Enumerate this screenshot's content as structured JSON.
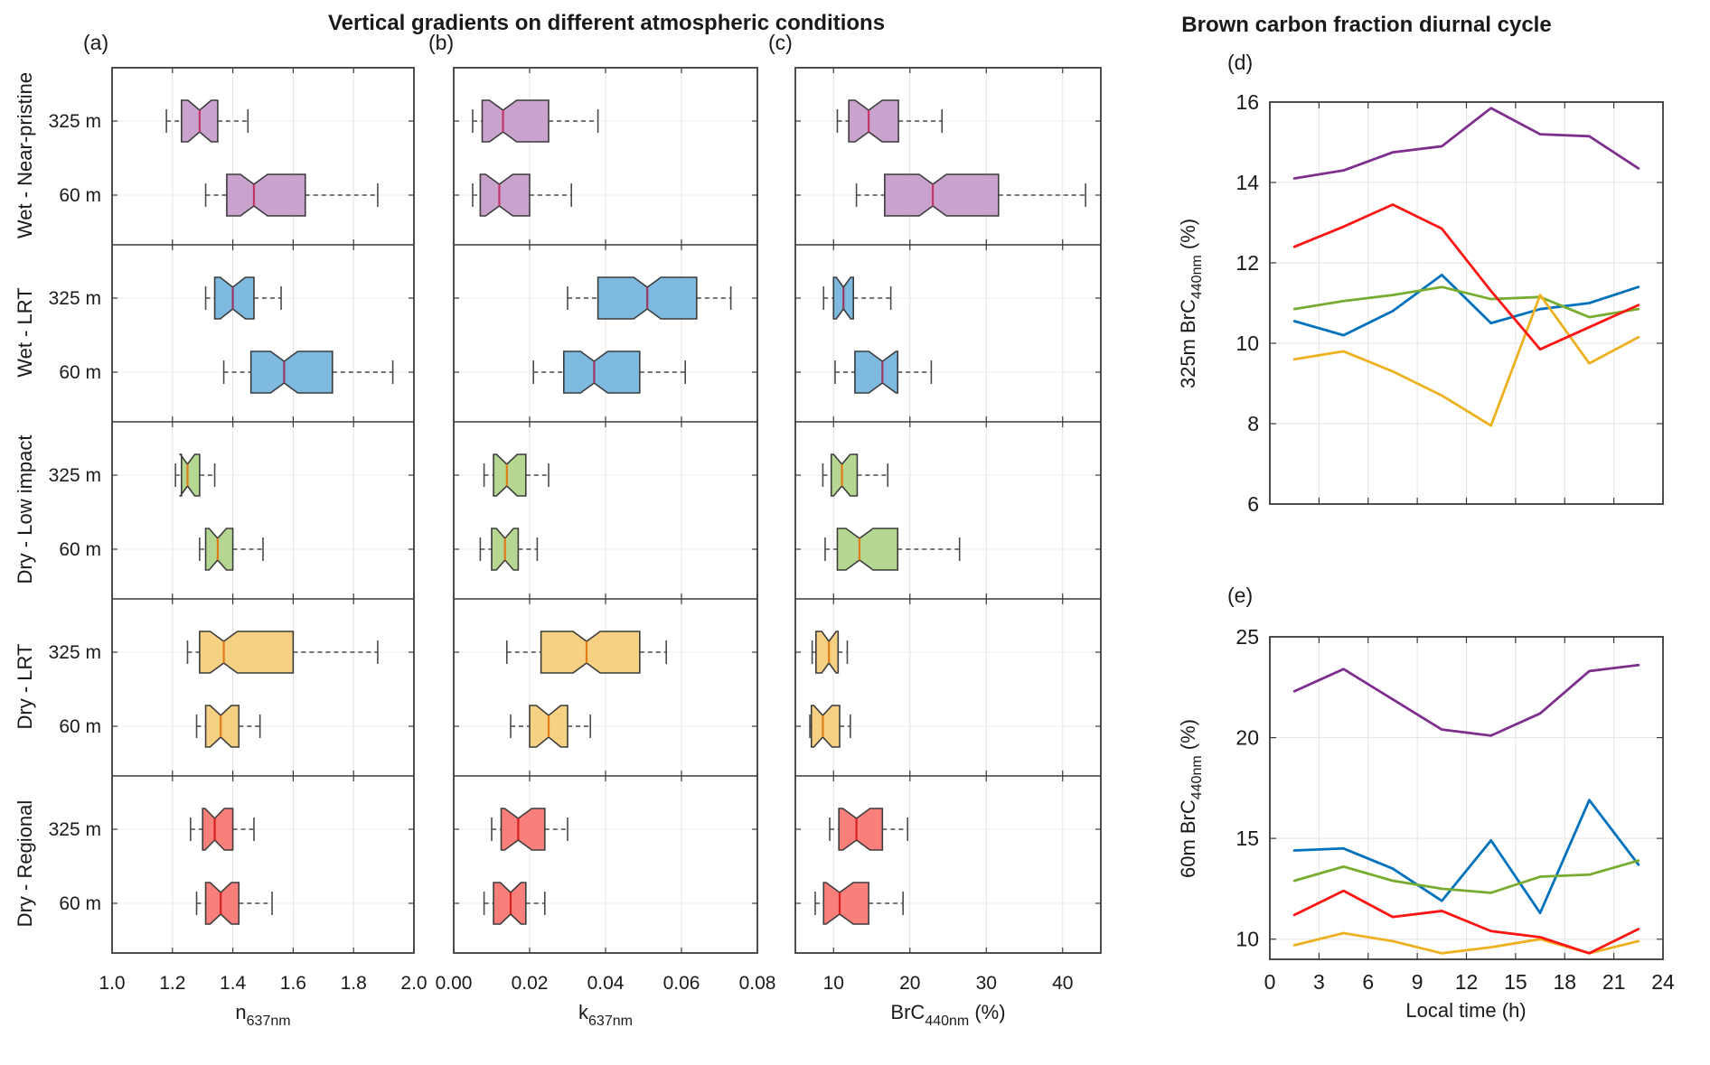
{
  "titles": {
    "left": "Vertical gradients on different atmospheric conditions",
    "right": "Brown carbon fraction diurnal cycle"
  },
  "row_labels": [
    "325 m",
    "60 m"
  ],
  "axis_color": "#3a3a3a",
  "grid_color": "#e4e4e4",
  "whisker_color": "#4a4a4a",
  "group_styles": [
    {
      "name": "Wet - Near-pristine",
      "fill": "#c9a3ce",
      "line": "#7E2F8E",
      "median": "#c2356b"
    },
    {
      "name": "Wet - LRT",
      "fill": "#7eb9e0",
      "line": "#0072BD",
      "median": "#9c3860"
    },
    {
      "name": "Dry - Low impact",
      "fill": "#b6d792",
      "line": "#77AC30",
      "median": "#e07b18"
    },
    {
      "name": "Dry - LRT",
      "fill": "#f6d184",
      "line": "#EDB120",
      "median": "#e07b18"
    },
    {
      "name": "Dry - Regional",
      "fill": "#f9807a",
      "line": "#ff1414",
      "median": "#d62020"
    }
  ],
  "chart_data": [
    {
      "id": "a",
      "type": "boxplot",
      "panel_label": "(a)",
      "xlabel": {
        "main": "n",
        "sub": "637nm",
        "suffix": ""
      },
      "xlim": [
        1.0,
        2.0
      ],
      "xtick_values": [
        1.0,
        1.2,
        1.4,
        1.6,
        1.8,
        2.0
      ],
      "xtick_labels": [
        "1.0",
        "1.2",
        "1.4",
        "1.6",
        "1.8",
        "2.0"
      ],
      "groups": [
        {
          "name": "Wet - Near-pristine",
          "rows": [
            {
              "label": "325 m",
              "whislo": 1.18,
              "q1": 1.23,
              "med": 1.29,
              "q3": 1.35,
              "whishi": 1.45
            },
            {
              "label": "60 m",
              "whislo": 1.31,
              "q1": 1.38,
              "med": 1.47,
              "q3": 1.64,
              "whishi": 1.88
            }
          ]
        },
        {
          "name": "Wet - LRT",
          "rows": [
            {
              "label": "325 m",
              "whislo": 1.31,
              "q1": 1.34,
              "med": 1.4,
              "q3": 1.47,
              "whishi": 1.56
            },
            {
              "label": "60 m",
              "whislo": 1.37,
              "q1": 1.46,
              "med": 1.57,
              "q3": 1.73,
              "whishi": 1.93
            }
          ]
        },
        {
          "name": "Dry - Low impact",
          "rows": [
            {
              "label": "325 m",
              "whislo": 1.21,
              "q1": 1.23,
              "med": 1.25,
              "q3": 1.29,
              "whishi": 1.34
            },
            {
              "label": "60 m",
              "whislo": 1.29,
              "q1": 1.31,
              "med": 1.35,
              "q3": 1.4,
              "whishi": 1.5
            }
          ]
        },
        {
          "name": "Dry - LRT",
          "rows": [
            {
              "label": "325 m",
              "whislo": 1.25,
              "q1": 1.29,
              "med": 1.37,
              "q3": 1.6,
              "whishi": 1.88
            },
            {
              "label": "60 m",
              "whislo": 1.28,
              "q1": 1.31,
              "med": 1.36,
              "q3": 1.42,
              "whishi": 1.49
            }
          ]
        },
        {
          "name": "Dry - Regional",
          "rows": [
            {
              "label": "325 m",
              "whislo": 1.26,
              "q1": 1.3,
              "med": 1.34,
              "q3": 1.4,
              "whishi": 1.47
            },
            {
              "label": "60 m",
              "whislo": 1.28,
              "q1": 1.31,
              "med": 1.36,
              "q3": 1.42,
              "whishi": 1.53
            }
          ]
        }
      ]
    },
    {
      "id": "b",
      "type": "boxplot",
      "panel_label": "(b)",
      "xlabel": {
        "main": "k",
        "sub": "637nm",
        "suffix": ""
      },
      "xlim": [
        0.0,
        0.08
      ],
      "xtick_values": [
        0.0,
        0.02,
        0.04,
        0.06,
        0.08
      ],
      "xtick_labels": [
        "0.00",
        "0.02",
        "0.04",
        "0.06",
        "0.08"
      ],
      "groups": [
        {
          "name": "Wet - Near-pristine",
          "rows": [
            {
              "label": "325 m",
              "whislo": 0.005,
              "q1": 0.0075,
              "med": 0.013,
              "q3": 0.025,
              "whishi": 0.038
            },
            {
              "label": "60 m",
              "whislo": 0.005,
              "q1": 0.007,
              "med": 0.012,
              "q3": 0.02,
              "whishi": 0.031
            }
          ]
        },
        {
          "name": "Wet - LRT",
          "rows": [
            {
              "label": "325 m",
              "whislo": 0.03,
              "q1": 0.038,
              "med": 0.051,
              "q3": 0.064,
              "whishi": 0.073
            },
            {
              "label": "60 m",
              "whislo": 0.021,
              "q1": 0.029,
              "med": 0.037,
              "q3": 0.049,
              "whishi": 0.061
            }
          ]
        },
        {
          "name": "Dry - Low impact",
          "rows": [
            {
              "label": "325 m",
              "whislo": 0.008,
              "q1": 0.0105,
              "med": 0.014,
              "q3": 0.019,
              "whishi": 0.025
            },
            {
              "label": "60 m",
              "whislo": 0.007,
              "q1": 0.01,
              "med": 0.0135,
              "q3": 0.017,
              "whishi": 0.022
            }
          ]
        },
        {
          "name": "Dry - LRT",
          "rows": [
            {
              "label": "325 m",
              "whislo": 0.014,
              "q1": 0.023,
              "med": 0.035,
              "q3": 0.049,
              "whishi": 0.056
            },
            {
              "label": "60 m",
              "whislo": 0.015,
              "q1": 0.02,
              "med": 0.025,
              "q3": 0.03,
              "whishi": 0.036
            }
          ]
        },
        {
          "name": "Dry - Regional",
          "rows": [
            {
              "label": "325 m",
              "whislo": 0.01,
              "q1": 0.0125,
              "med": 0.017,
              "q3": 0.024,
              "whishi": 0.03
            },
            {
              "label": "60 m",
              "whislo": 0.008,
              "q1": 0.0105,
              "med": 0.015,
              "q3": 0.019,
              "whishi": 0.024
            }
          ]
        }
      ]
    },
    {
      "id": "c",
      "type": "boxplot",
      "panel_label": "(c)",
      "xlabel": {
        "main": "BrC",
        "sub": "440nm",
        "suffix": " (%)"
      },
      "xlim": [
        5,
        45
      ],
      "xtick_values": [
        10,
        20,
        30,
        40
      ],
      "xtick_labels": [
        "10",
        "20",
        "30",
        "40"
      ],
      "groups": [
        {
          "name": "Wet - Near-pristine",
          "rows": [
            {
              "label": "325 m",
              "whislo": 10.5,
              "q1": 12.0,
              "med": 14.6,
              "q3": 18.5,
              "whishi": 24.2
            },
            {
              "label": "60 m",
              "whislo": 13.0,
              "q1": 16.7,
              "med": 23.0,
              "q3": 31.6,
              "whishi": 43.0
            }
          ]
        },
        {
          "name": "Wet - LRT",
          "rows": [
            {
              "label": "325 m",
              "whislo": 8.7,
              "q1": 10.0,
              "med": 11.3,
              "q3": 12.6,
              "whishi": 17.5
            },
            {
              "label": "60 m",
              "whislo": 10.2,
              "q1": 12.8,
              "med": 16.4,
              "q3": 18.4,
              "whishi": 22.8
            }
          ]
        },
        {
          "name": "Dry - Low impact",
          "rows": [
            {
              "label": "325 m",
              "whislo": 8.6,
              "q1": 9.7,
              "med": 11.1,
              "q3": 13.1,
              "whishi": 17.1
            },
            {
              "label": "60 m",
              "whislo": 8.9,
              "q1": 10.5,
              "med": 13.4,
              "q3": 18.4,
              "whishi": 26.5
            }
          ]
        },
        {
          "name": "Dry - LRT",
          "rows": [
            {
              "label": "325 m",
              "whislo": 7.2,
              "q1": 7.7,
              "med": 9.4,
              "q3": 10.6,
              "whishi": 11.8
            },
            {
              "label": "60 m",
              "whislo": 6.9,
              "q1": 7.1,
              "med": 8.6,
              "q3": 10.8,
              "whishi": 12.2
            }
          ]
        },
        {
          "name": "Dry - Regional",
          "rows": [
            {
              "label": "325 m",
              "whislo": 9.5,
              "q1": 10.7,
              "med": 13.0,
              "q3": 16.4,
              "whishi": 19.7
            },
            {
              "label": "60 m",
              "whislo": 7.6,
              "q1": 8.7,
              "med": 10.8,
              "q3": 14.6,
              "whishi": 19.1
            }
          ]
        }
      ]
    },
    {
      "id": "d",
      "type": "line",
      "panel_label": "(d)",
      "ylabel": {
        "main": "325m BrC",
        "sub": "440nm",
        "suffix": " (%)"
      },
      "xlim": [
        0,
        24
      ],
      "ylim": [
        6,
        16
      ],
      "xtick_values": [
        0,
        3,
        6,
        9,
        12,
        15,
        18,
        21,
        24
      ],
      "xtick_labels": [],
      "ytick_values": [
        6,
        8,
        10,
        12,
        14,
        16
      ],
      "ytick_labels": [
        "6",
        "8",
        "10",
        "12",
        "14",
        "16"
      ],
      "x": [
        1.5,
        4.5,
        7.5,
        10.5,
        13.5,
        16.5,
        19.5,
        22.5
      ],
      "series": [
        {
          "name": "Wet - Near-pristine",
          "values": [
            14.1,
            14.3,
            14.75,
            14.9,
            15.85,
            15.2,
            15.15,
            14.35
          ]
        },
        {
          "name": "Wet - LRT",
          "values": [
            10.55,
            10.2,
            10.8,
            11.7,
            10.5,
            10.85,
            11.0,
            11.4
          ]
        },
        {
          "name": "Dry - Low impact",
          "values": [
            10.85,
            11.05,
            11.2,
            11.4,
            11.1,
            11.15,
            10.65,
            10.85
          ]
        },
        {
          "name": "Dry - LRT",
          "values": [
            9.6,
            9.8,
            9.3,
            8.7,
            7.95,
            11.2,
            9.5,
            10.15
          ]
        },
        {
          "name": "Dry - Regional",
          "values": [
            12.4,
            12.9,
            13.45,
            12.85,
            11.3,
            9.85,
            10.4,
            10.95
          ]
        }
      ]
    },
    {
      "id": "e",
      "type": "line",
      "panel_label": "(e)",
      "ylabel": {
        "main": "60m BrC",
        "sub": "440nm",
        "suffix": " (%)"
      },
      "xlabel": {
        "main": "Local time (h)",
        "sub": "",
        "suffix": ""
      },
      "xlim": [
        0,
        24
      ],
      "ylim": [
        9,
        25
      ],
      "xtick_values": [
        0,
        3,
        6,
        9,
        12,
        15,
        18,
        21,
        24
      ],
      "xtick_labels": [
        "0",
        "3",
        "6",
        "9",
        "12",
        "15",
        "18",
        "21",
        "24"
      ],
      "ytick_values": [
        10,
        15,
        20,
        25
      ],
      "ytick_labels": [
        "10",
        "15",
        "20",
        "25"
      ],
      "x": [
        1.5,
        4.5,
        7.5,
        10.5,
        13.5,
        16.5,
        19.5,
        22.5
      ],
      "series": [
        {
          "name": "Wet - Near-pristine",
          "values": [
            22.3,
            23.4,
            21.9,
            20.4,
            20.1,
            21.2,
            23.3,
            23.6
          ]
        },
        {
          "name": "Wet - LRT",
          "values": [
            14.4,
            14.5,
            13.5,
            11.9,
            14.9,
            11.3,
            16.9,
            13.7
          ]
        },
        {
          "name": "Dry - Low impact",
          "values": [
            12.9,
            13.6,
            12.9,
            12.5,
            12.3,
            13.1,
            13.2,
            13.9
          ]
        },
        {
          "name": "Dry - LRT",
          "values": [
            9.7,
            10.3,
            9.9,
            9.3,
            9.6,
            10.0,
            9.3,
            9.9
          ]
        },
        {
          "name": "Dry - Regional",
          "values": [
            11.2,
            12.4,
            11.1,
            11.4,
            10.4,
            10.1,
            9.3,
            10.5
          ]
        }
      ]
    }
  ]
}
